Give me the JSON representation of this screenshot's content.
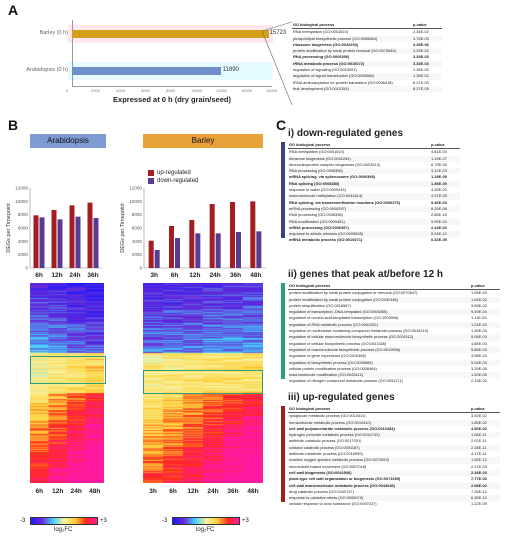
{
  "panel_labels": [
    "A",
    "B",
    "C"
  ],
  "panel_a": {
    "colors": {
      "barley": "#d4a017",
      "arabidopsis": "#6f8fc8",
      "highlight": "#ffd6e6"
    },
    "bars": [
      {
        "label": "Barley (0 h)",
        "value": "15723",
        "value_num": 15723
      },
      {
        "label": "Arabidopsis (0 h)",
        "value": "11890",
        "value_num": 11890
      }
    ],
    "x_ticks": [
      "0",
      "2000",
      "4000",
      "6000",
      "8000",
      "10000",
      "12000",
      "14000",
      "16000"
    ],
    "x_max": 16000,
    "x_title": "Expressed at 0 h (dry grain/seed)",
    "table": {
      "header": [
        "GO biological process",
        "p-value"
      ],
      "rows": [
        {
          "term": "RNA methylation (GO:0001510)",
          "p": "2.34E-02",
          "bold": false
        },
        {
          "term": "phospholipid biosynthetic process (GO:0008654)",
          "p": "3.75E-03",
          "bold": false
        },
        {
          "term": "ribosome biogenesis (GO:0042254)",
          "p": "3.49E-06",
          "bold": true
        },
        {
          "term": "protein modification by small protein removal (GO:0070646)",
          "p": "3.29E-02",
          "bold": false
        },
        {
          "term": "RNA processing (GO:0006396)",
          "p": "3.33E-03",
          "bold": true
        },
        {
          "term": "rRNA metabolic process (GO:0016072)",
          "p": "3.33E-03",
          "bold": true
        },
        {
          "term": "regulation of signaling (GO:0023051)",
          "p": "1.36E-02",
          "bold": false
        },
        {
          "term": "regulation of signal transduction (GO:0009966)",
          "p": "1.36E-02",
          "bold": false
        },
        {
          "term": "tRNA aminoacylation for protein translation (GO:0006418)",
          "p": "6.21E-03",
          "bold": false
        },
        {
          "term": "fruit development (GO:0010154)",
          "p": "8.27E-05",
          "bold": false
        }
      ]
    }
  },
  "panel_b": {
    "species": [
      "Arabidopsis",
      "Barley"
    ],
    "legend": [
      "up-regulated",
      "down-regulated"
    ],
    "colors": {
      "up": "#a41d22",
      "down": "#5b3b92",
      "arabidopsis_box": "#7e9bd4",
      "barley_box": "#e8a23a"
    },
    "y_title": "DEGs per Timepoint",
    "y_ticks": [
      "0",
      "2000",
      "4000",
      "6000",
      "8000",
      "10000",
      "12000"
    ],
    "y_max": 12000,
    "chart_data": [
      {
        "type": "bar",
        "title": "Arabidopsis",
        "categories": [
          "6h",
          "12h",
          "24h",
          "36h"
        ],
        "series": [
          {
            "name": "up-regulated",
            "values": [
              7900,
              8700,
              9400,
              9800
            ]
          },
          {
            "name": "down-regulated",
            "values": [
              7600,
              7300,
              7700,
              7500
            ]
          }
        ],
        "ylabel": "DEGs per Timepoint",
        "ylim": [
          0,
          12000
        ]
      },
      {
        "type": "bar",
        "title": "Barley",
        "categories": [
          "3h",
          "6h",
          "12h",
          "24h",
          "36h",
          "48h"
        ],
        "series": [
          {
            "name": "up-regulated",
            "values": [
              4100,
              6300,
              7200,
              9600,
              9900,
              10000
            ]
          },
          {
            "name": "down-regulated",
            "values": [
              2700,
              4500,
              5200,
              5200,
              5400,
              5500
            ]
          }
        ],
        "ylabel": "DEGs per Timepoint",
        "ylim": [
          0,
          12000
        ]
      }
    ],
    "heatmap": {
      "arab_labels": [
        "6h",
        "12h",
        "24h",
        "48h"
      ],
      "barley_labels": [
        "3h",
        "6h",
        "12h",
        "24h",
        "36h",
        "48h"
      ],
      "scale_min": "-3",
      "scale_max": "+3",
      "scale_title": "log₂FC"
    }
  },
  "panel_c": {
    "sections": [
      {
        "title": "i) down-regulated genes",
        "color": "#3a3f8f",
        "header": [
          "GO biological process",
          "p-value"
        ],
        "rows": [
          {
            "term": "RNA methylation (GO:0001510)",
            "p": "4.81E-03",
            "bold": false
          },
          {
            "term": "ribosome biogenesis (GO:0042254)",
            "p": "1.19E-07",
            "bold": false
          },
          {
            "term": "ribonucleoprotein complex biogenesis (GO:0022613)",
            "p": "8.79E-09",
            "bold": false
          },
          {
            "term": "RNA processing (GO:0006396)",
            "p": "3.12E-03",
            "bold": false
          },
          {
            "term": "mRNA splicing, via spliceosome (GO:0000398)",
            "p": "1.19E-05",
            "bold": true
          },
          {
            "term": "RNA splicing (GO:0008380)",
            "p": "1.36E-05",
            "bold": true
          },
          {
            "term": "response to water (GO:0009415)",
            "p": "4.39E-02",
            "bold": false
          },
          {
            "term": "macromolecule methylation (GO:0043414)",
            "p": "4.37E-05",
            "bold": false
          },
          {
            "term": "RNA splicing, via transesterification reactions (GO:0000375)",
            "p": "9.46E-03",
            "bold": true
          },
          {
            "term": "mRNA processing (GO:0006397)",
            "p": "8.29E-06",
            "bold": false
          },
          {
            "term": "RNA processing (GO:0006396)",
            "p": "2.85E-15",
            "bold": false
          },
          {
            "term": "RNA modification (GO:0009451)",
            "p": "9.99E-04",
            "bold": false
          },
          {
            "term": "mRNA processing (GO:0006397)",
            "p": "2.14E-04",
            "bold": true
          },
          {
            "term": "response to abiotic stimulus (GO:0009628)",
            "p": "5.24E-10",
            "bold": false
          },
          {
            "term": "mRNA metabolic process (GO:0016071)",
            "p": "6.32E-05",
            "bold": true
          }
        ]
      },
      {
        "title": "ii) genes that peak at/before 12 h",
        "color": "#2e9e7a",
        "header": [
          "GO biological process",
          "p-value"
        ],
        "rows": [
          {
            "term": "protein modification by small protein conjugation or removal (GO:0070647)",
            "p": "1.05E-03",
            "bold": false
          },
          {
            "term": "protein modification by small protein conjugation (GO:0032446)",
            "p": "1.54E-02",
            "bold": false
          },
          {
            "term": "protein ubiquitination (GO:0016567)",
            "p": "3.59E-02",
            "bold": false
          },
          {
            "term": "regulation of transcription, DNA-templated (GO:0006355)",
            "p": "9.49E-04",
            "bold": false
          },
          {
            "term": "regulation of nucleic acid-templated transcription (GO:1903506)",
            "p": "1.11E-03",
            "bold": false
          },
          {
            "term": "regulation of RNA metabolic process (GO:0051252)",
            "p": "1.24E-03",
            "bold": false
          },
          {
            "term": "regulation of nucleobase-containing compound metabolic process (GO:0019219)",
            "p": "1.39E-03",
            "bold": false
          },
          {
            "term": "regulation of cellular macromolecule biosynthetic process (GO:2000112)",
            "p": "5.06E-03",
            "bold": false
          },
          {
            "term": "regulation of cellular biosynthetic process (GO:0031326)",
            "p": "4.88E-03",
            "bold": false
          },
          {
            "term": "regulation of macromolecule biosynthetic process (GO:0010556)",
            "p": "5.85E-03",
            "bold": false
          },
          {
            "term": "regulation of gene expression (GO:0010468)",
            "p": "3.96E-03",
            "bold": false
          },
          {
            "term": "regulation of biosynthetic process (GO:0009889)",
            "p": "5.04E-03",
            "bold": false
          },
          {
            "term": "cellular protein modification process (GO:0006464)",
            "p": "3.29E-05",
            "bold": false
          },
          {
            "term": "macromolecule modification (GO:0043412)",
            "p": "1.20E-05",
            "bold": false
          },
          {
            "term": "regulation of nitrogen compound metabolic process (GO:0051171)",
            "p": "2.13E-02",
            "bold": false
          }
        ]
      },
      {
        "title": "iii) up-regulated genes",
        "color": "#a41d22",
        "header": [
          "GO biological process",
          "p-value"
        ],
        "rows": [
          {
            "term": "xyloglucan metabolic process (GO:0010411)",
            "p": "3.92E-02",
            "bold": false
          },
          {
            "term": "hemicellulose metabolic process (GO:0010410)",
            "p": "1.85E-02",
            "bold": false
          },
          {
            "term": "cell wall polysaccharide metabolic process (GO:0010383)",
            "p": "4.50E-02",
            "bold": true
          },
          {
            "term": "hydrogen peroxide metabolic process (GO:0042743)",
            "p": "1.06E-11",
            "bold": false
          },
          {
            "term": "antibiotic catabolic process (GO:0017001)",
            "p": "2.02E-11",
            "bold": false
          },
          {
            "term": "cofactor catabolic process (GO:0051187)",
            "p": "2.28E-11",
            "bold": false
          },
          {
            "term": "antibiotic metabolic process (GO:0016999)",
            "p": "4.17E-11",
            "bold": false
          },
          {
            "term": "reactive oxygen species metabolic process (GO:0072593)",
            "p": "1.55E-12",
            "bold": false
          },
          {
            "term": "microtubule-based movement (GO:0007018)",
            "p": "2.21E-03",
            "bold": false
          },
          {
            "term": "cell wall biogenesis (GO:0042546)",
            "p": "2.34E-03",
            "bold": true
          },
          {
            "term": "plant-type cell wall organization or biogenesis (GO:0071669)",
            "p": "7.77E-03",
            "bold": true
          },
          {
            "term": "cell wall macromolecule metabolic process (GO:0044036)",
            "p": "2.68E-02",
            "bold": true
          },
          {
            "term": "drug catabolic process (GO:0042737)",
            "p": "7.26E-12",
            "bold": false
          },
          {
            "term": "response to oxidative stress (GO:0006979)",
            "p": "6.35E-10",
            "bold": false
          },
          {
            "term": "cellular response to toxic substance (GO:0097237)",
            "p": "1.22E-09",
            "bold": false
          }
        ]
      }
    ]
  }
}
